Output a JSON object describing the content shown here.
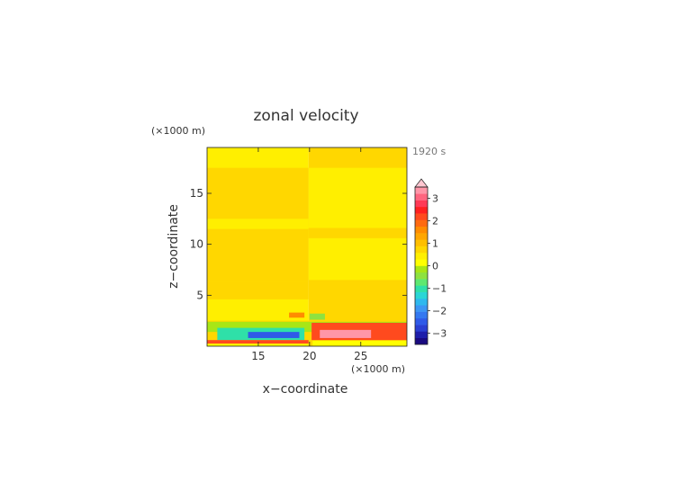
{
  "chart_data": {
    "type": "heatmap",
    "title": "zonal velocity",
    "time_label": "1920 s",
    "xlabel": "x−coordinate",
    "ylabel": "z−coordinate",
    "x_unit": "(×1000 m)",
    "y_unit": "(×1000 m)",
    "xlim": [
      10,
      29.5
    ],
    "ylim": [
      0,
      19.5
    ],
    "x_ticks": [
      15,
      20,
      25
    ],
    "y_ticks": [
      5,
      10,
      15
    ],
    "colorbar": {
      "range": [
        -3.5,
        3.5
      ],
      "step": 0.25,
      "tick_values": [
        3,
        2,
        1,
        0,
        -1,
        -2,
        -3
      ],
      "tick_labels": [
        "3",
        "2",
        "1",
        "0",
        "−1",
        "−2",
        "−3"
      ],
      "extend": "max",
      "colors": [
        "#1a0a80",
        "#1e1eaa",
        "#2a3fd2",
        "#2f5ae8",
        "#3478f0",
        "#3c96f4",
        "#2eb8ee",
        "#2ad6d6",
        "#2fe0a8",
        "#5ee870",
        "#8ee240",
        "#a8e616",
        "#ffff00",
        "#ffef00",
        "#ffd700",
        "#ffbf00",
        "#ffa600",
        "#ff8c00",
        "#ff6a10",
        "#ff4a1e",
        "#ff2020",
        "#ff3a56",
        "#ff6680",
        "#ff96a8"
      ]
    },
    "regions": [
      {
        "x": [
          10,
          19.9
        ],
        "z": [
          0,
          19.5
        ],
        "value": -0.1
      },
      {
        "x": [
          19.9,
          29.5
        ],
        "z": [
          0,
          19.5
        ],
        "value": 0.1
      },
      {
        "x": [
          10,
          19.9
        ],
        "z": [
          6.4,
          17.5
        ],
        "value": 0.1
      },
      {
        "x": [
          10,
          19.9
        ],
        "z": [
          4.6,
          6.4
        ],
        "value": 0.1
      },
      {
        "x": [
          10,
          19.9
        ],
        "z": [
          11.5,
          12.5
        ],
        "value": -0.1
      },
      {
        "x": [
          19.9,
          29.5
        ],
        "z": [
          6.5,
          17.5
        ],
        "value": -0.1
      },
      {
        "x": [
          19.9,
          29.5
        ],
        "z": [
          10.6,
          11.6
        ],
        "value": 0.1
      },
      {
        "x": [
          10,
          29.5
        ],
        "z": [
          0,
          2.5
        ],
        "value": 0.1
      },
      {
        "x": [
          10,
          29.5
        ],
        "z": [
          1.4,
          2.4
        ],
        "value": -0.6
      },
      {
        "x": [
          11,
          19.5
        ],
        "z": [
          0.6,
          1.8
        ],
        "value": -1.3
      },
      {
        "x": [
          14,
          19
        ],
        "z": [
          0.8,
          1.4
        ],
        "value": -2.6
      },
      {
        "x": [
          10,
          19.9
        ],
        "z": [
          0.25,
          0.6
        ],
        "value": 1.3
      },
      {
        "x": [
          10,
          19.9
        ],
        "z": [
          0,
          0.25
        ],
        "value": -0.5
      },
      {
        "x": [
          20.2,
          29.5
        ],
        "z": [
          0.6,
          2.3
        ],
        "value": 1.4
      },
      {
        "x": [
          21,
          26
        ],
        "z": [
          0.8,
          1.6
        ],
        "value": 2.6
      },
      {
        "x": [
          20.3,
          29.5
        ],
        "z": [
          0,
          0.55
        ],
        "value": -0.5
      },
      {
        "x": [
          20,
          21.5
        ],
        "z": [
          2.6,
          3.2
        ],
        "value": -0.9
      },
      {
        "x": [
          18,
          19.5
        ],
        "z": [
          2.8,
          3.3
        ],
        "value": 0.8
      }
    ]
  }
}
